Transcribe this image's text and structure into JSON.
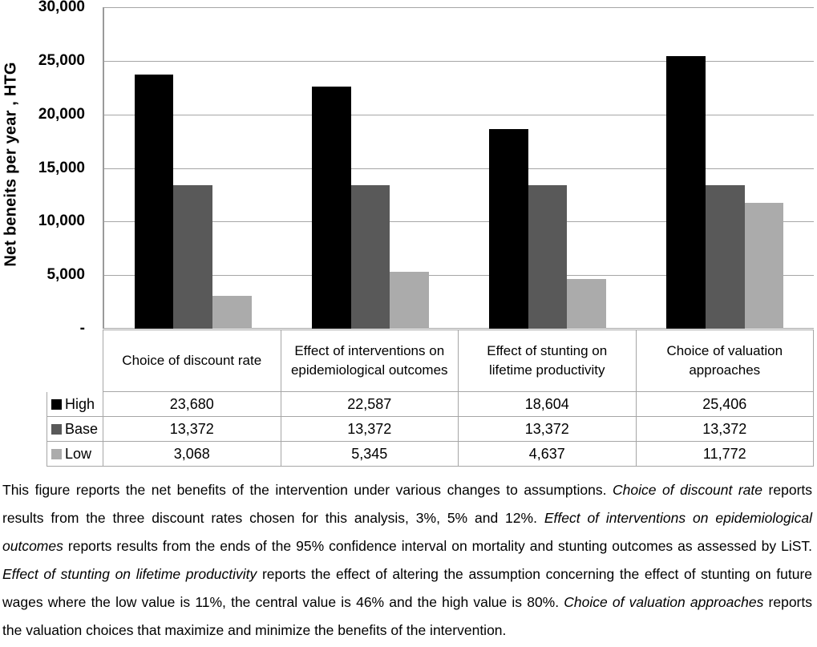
{
  "chart_data": {
    "type": "bar",
    "title": "",
    "xlabel": "",
    "ylabel": "Net beneits per year , HTG",
    "ylim": [
      0,
      30000
    ],
    "ytick_labels": [
      "30,000",
      "25,000",
      "20,000",
      "15,000",
      "10,000",
      "5,000",
      "-"
    ],
    "grid": true,
    "legend_position": "data-table-left",
    "categories": [
      "Choice of discount rate",
      "Effect of interventions on epidemiological outcomes",
      "Effect of stunting on lifetime productivity",
      "Choice of valuation approaches"
    ],
    "series": [
      {
        "name": "High",
        "color": "#000000",
        "values": [
          23680,
          22587,
          18604,
          25406
        ],
        "display_values": [
          "23,680",
          "22,587",
          "18,604",
          "25,406"
        ]
      },
      {
        "name": "Base",
        "color": "#595959",
        "values": [
          13372,
          13372,
          13372,
          13372
        ],
        "display_values": [
          "13,372",
          "13,372",
          "13,372",
          "13,372"
        ]
      },
      {
        "name": "Low",
        "color": "#ababab",
        "values": [
          3068,
          5345,
          4637,
          11772
        ],
        "display_values": [
          "3,068",
          "5,345",
          "4,637",
          "11,772"
        ]
      }
    ]
  },
  "caption": {
    "segments": [
      {
        "text": "This figure reports the net benefits of the intervention under various changes to assumptions. ",
        "italic": false
      },
      {
        "text": "Choice of discount rate",
        "italic": true
      },
      {
        "text": " reports results from the three discount rates chosen for this analysis, 3%, 5% and 12%. ",
        "italic": false
      },
      {
        "text": "Effect of interventions on epidemiological outcomes",
        "italic": true
      },
      {
        "text": " reports results from the ends of the 95% confidence interval on mortality and stunting outcomes as assessed by LiST. ",
        "italic": false
      },
      {
        "text": "Effect of stunting on lifetime productivity",
        "italic": true
      },
      {
        "text": " reports the effect of altering the assumption concerning the effect of stunting on future wages where the low value is 11%, the central value is 46% and the high value is 80%. ",
        "italic": false
      },
      {
        "text": "Choice of valuation approaches",
        "italic": true
      },
      {
        "text": " reports the valuation choices that maximize and minimize the benefits of the intervention.",
        "italic": false
      }
    ]
  }
}
